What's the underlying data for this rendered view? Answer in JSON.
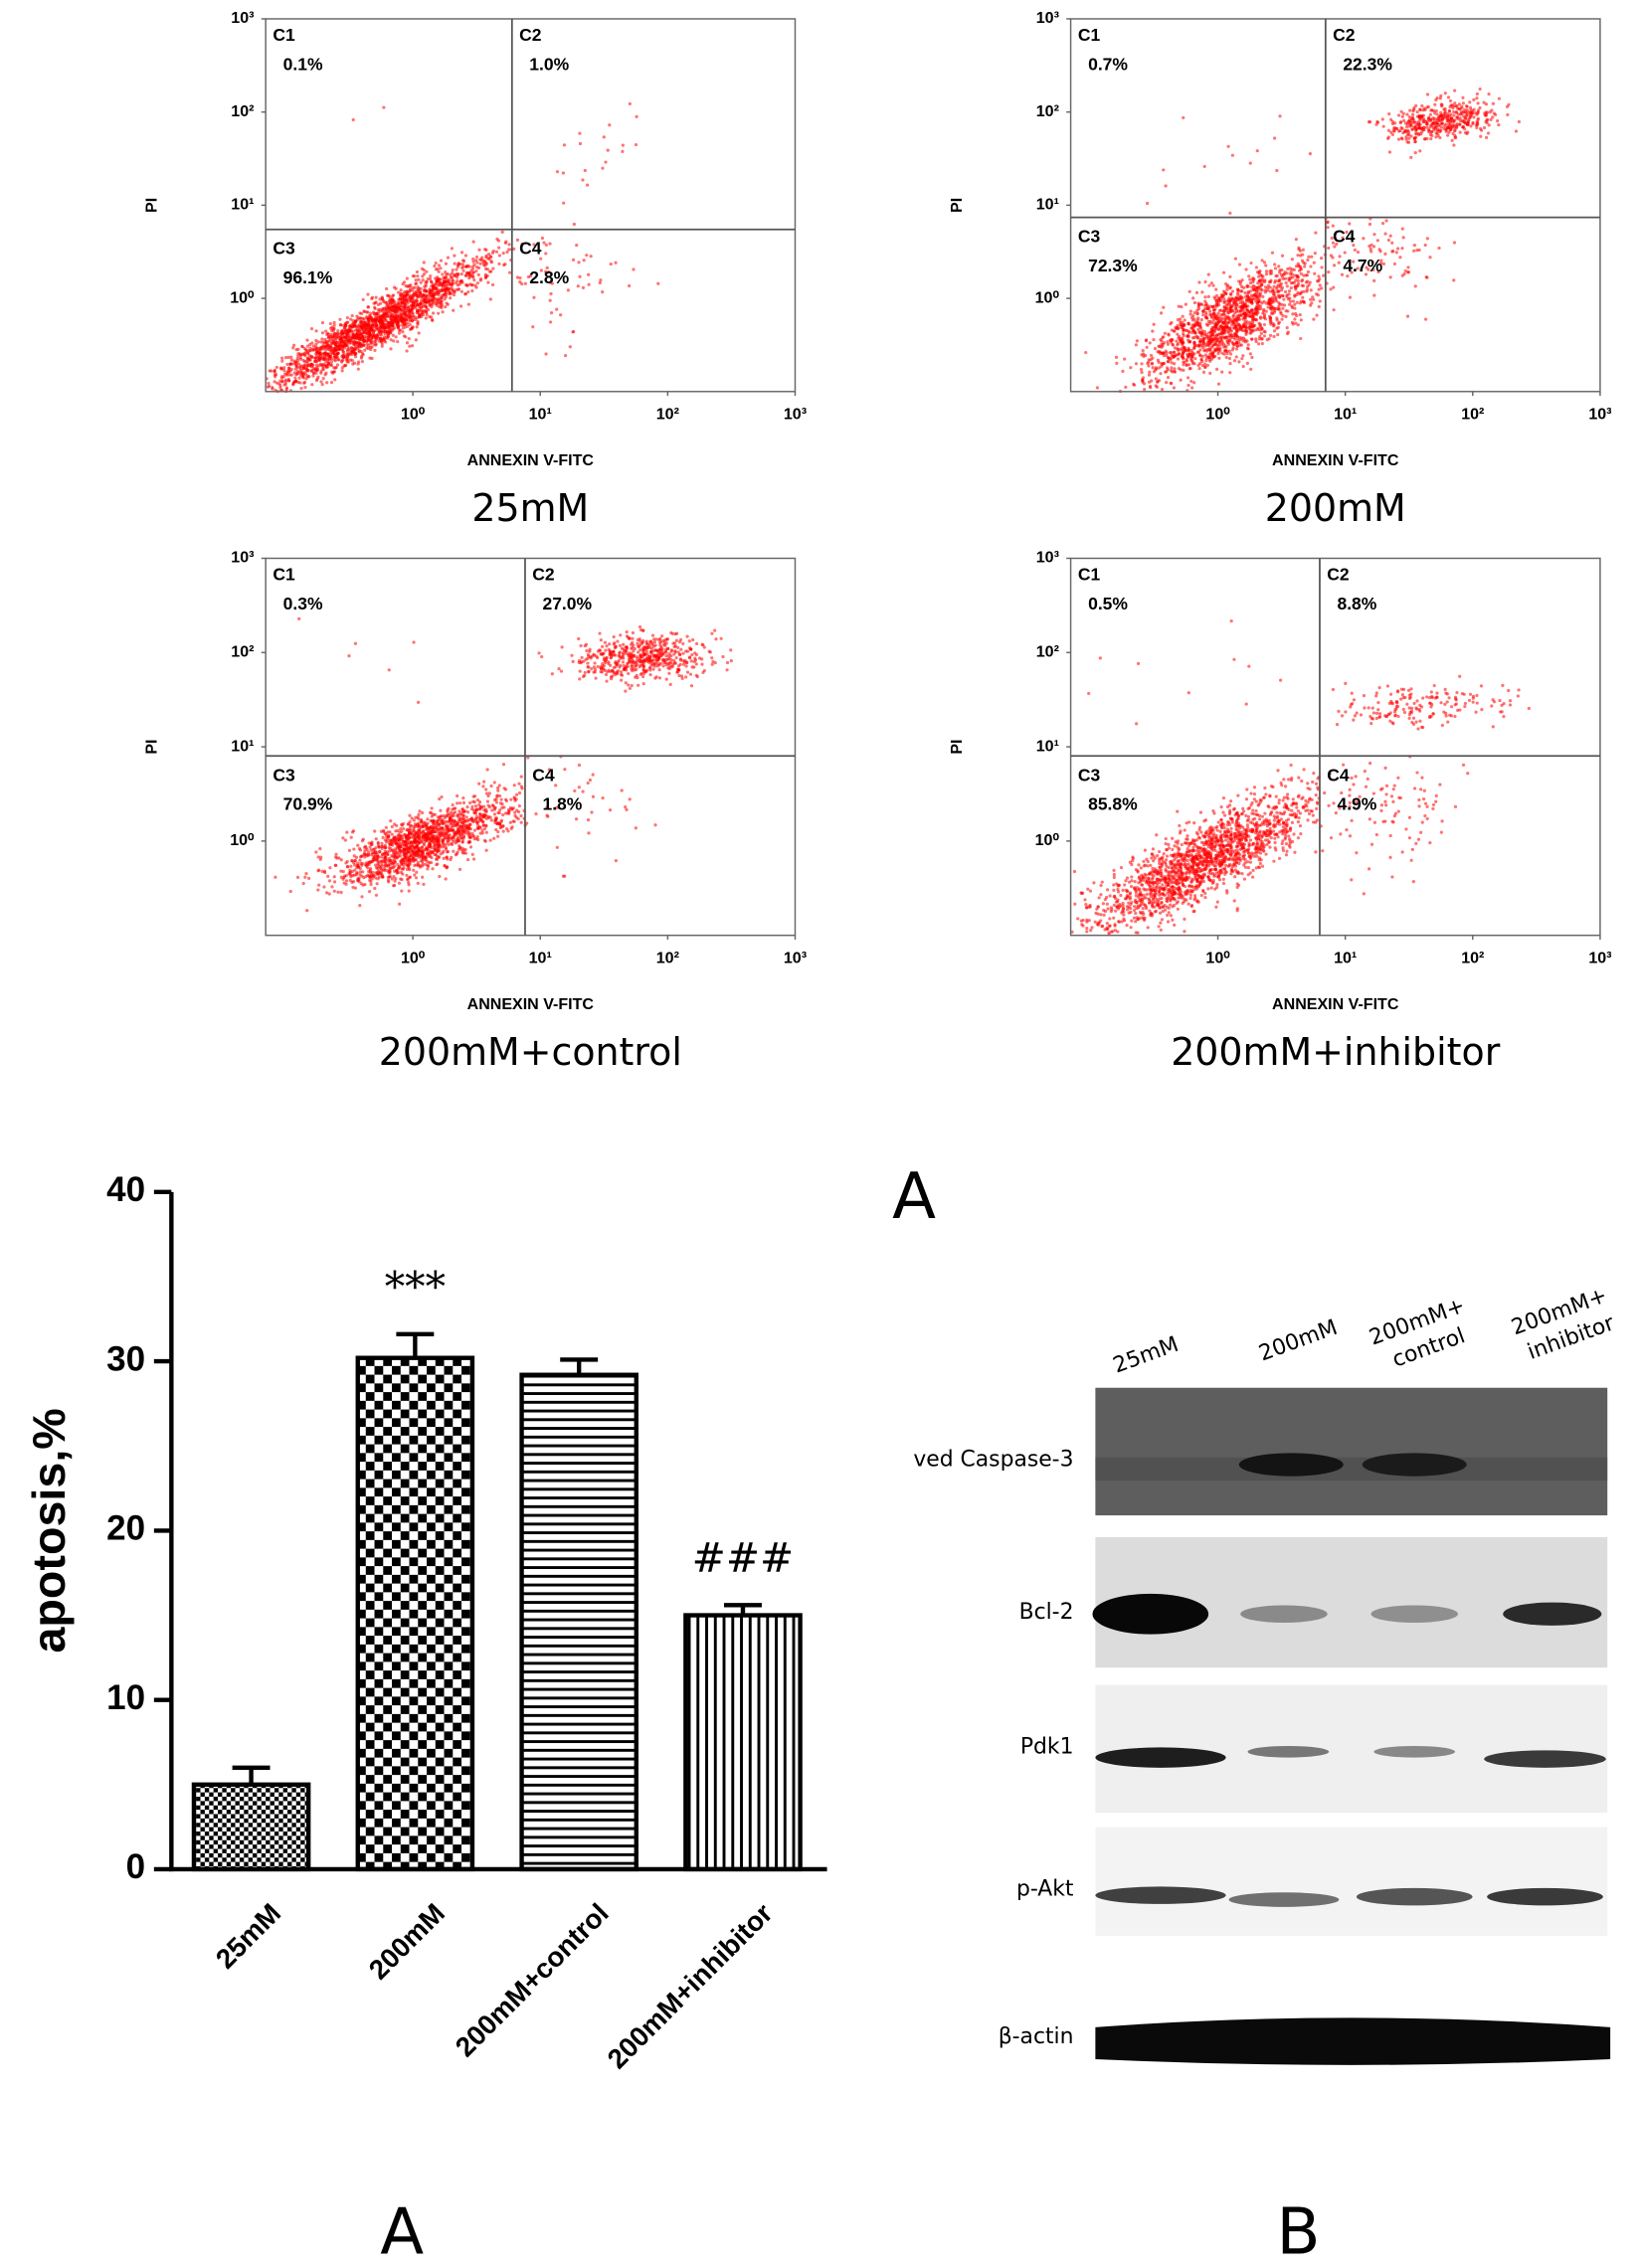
{
  "chart_data": [
    {
      "type": "flow",
      "title": "25mM",
      "xlabel": "ANNEXIN V-FITC",
      "ylabel": "PI",
      "categories": [
        "C1",
        "C2",
        "C3",
        "C4"
      ],
      "values": [
        0.1,
        1.0,
        96.1,
        2.8
      ],
      "value_labels": [
        "0.1%",
        "1.0%",
        "96.1%",
        "2.8%"
      ],
      "color": "#ff0000",
      "xscale": "log",
      "yscale": "log",
      "xlim": [
        0.07,
        1000
      ],
      "ylim": [
        0.1,
        1000
      ],
      "xticks": [
        {
          "value": 1,
          "label": "10⁰"
        },
        {
          "value": 10,
          "label": "10¹"
        },
        {
          "value": 100,
          "label": "10²"
        },
        {
          "value": 1000,
          "label": "10³"
        }
      ],
      "yticks": [
        {
          "value": 1,
          "label": "10⁰"
        },
        {
          "value": 10,
          "label": "10¹"
        },
        {
          "value": 100,
          "label": "10²"
        },
        {
          "value": 1000,
          "label": "10³"
        }
      ],
      "xgate": 6,
      "ygate": 5.5
    },
    {
      "type": "flow",
      "title": "200mM",
      "xlabel": "ANNEXIN V-FITC",
      "ylabel": "PI",
      "categories": [
        "C1",
        "C2",
        "C3",
        "C4"
      ],
      "values": [
        0.7,
        22.3,
        72.3,
        4.7
      ],
      "value_labels": [
        "0.7%",
        "22.3%",
        "72.3%",
        "4.7%"
      ],
      "color": "#ff0000",
      "xscale": "log",
      "yscale": "log",
      "xlim": [
        0.07,
        1000
      ],
      "ylim": [
        0.1,
        1000
      ],
      "xticks": [
        {
          "value": 1,
          "label": "10⁰"
        },
        {
          "value": 10,
          "label": "10¹"
        },
        {
          "value": 100,
          "label": "10²"
        },
        {
          "value": 1000,
          "label": "10³"
        }
      ],
      "yticks": [
        {
          "value": 1,
          "label": "10⁰"
        },
        {
          "value": 10,
          "label": "10¹"
        },
        {
          "value": 100,
          "label": "10²"
        },
        {
          "value": 1000,
          "label": "10³"
        }
      ],
      "xgate": 7,
      "ygate": 7.4
    },
    {
      "type": "flow",
      "title": "200mM+control",
      "xlabel": "ANNEXIN V-FITC",
      "ylabel": "PI",
      "categories": [
        "C1",
        "C2",
        "C3",
        "C4"
      ],
      "values": [
        0.3,
        27.0,
        70.9,
        1.8
      ],
      "value_labels": [
        "0.3%",
        "27.0%",
        "70.9%",
        "1.8%"
      ],
      "color": "#ff0000",
      "xscale": "log",
      "yscale": "log",
      "xlim": [
        0.07,
        1000
      ],
      "ylim": [
        0.1,
        1000
      ],
      "xticks": [
        {
          "value": 1,
          "label": "10⁰"
        },
        {
          "value": 10,
          "label": "10¹"
        },
        {
          "value": 100,
          "label": "10²"
        },
        {
          "value": 1000,
          "label": "10³"
        }
      ],
      "yticks": [
        {
          "value": 1,
          "label": "10⁰"
        },
        {
          "value": 10,
          "label": "10¹"
        },
        {
          "value": 100,
          "label": "10²"
        },
        {
          "value": 1000,
          "label": "10³"
        }
      ],
      "xgate": 7.6,
      "ygate": 8
    },
    {
      "type": "flow",
      "title": "200mM+inhibitor",
      "xlabel": "ANNEXIN V-FITC",
      "ylabel": "PI",
      "categories": [
        "C1",
        "C2",
        "C3",
        "C4"
      ],
      "values": [
        0.5,
        8.8,
        85.8,
        4.9
      ],
      "value_labels": [
        "0.5%",
        "8.8%",
        "85.8%",
        "4.9%"
      ],
      "color": "#ff0000",
      "xscale": "log",
      "yscale": "log",
      "xlim": [
        0.07,
        1000
      ],
      "ylim": [
        0.1,
        1000
      ],
      "xticks": [
        {
          "value": 1,
          "label": "10⁰"
        },
        {
          "value": 10,
          "label": "10¹"
        },
        {
          "value": 100,
          "label": "10²"
        },
        {
          "value": 1000,
          "label": "10³"
        }
      ],
      "yticks": [
        {
          "value": 1,
          "label": "10⁰"
        },
        {
          "value": 10,
          "label": "10¹"
        },
        {
          "value": 100,
          "label": "10²"
        },
        {
          "value": 1000,
          "label": "10³"
        }
      ],
      "xgate": 6.3,
      "ygate": 8
    },
    {
      "type": "bar",
      "ylabel": "apotosis,%",
      "categories": [
        "25mM",
        "200mM",
        "200mM+control",
        "200mM+inhibitor"
      ],
      "values": [
        5,
        30.2,
        29.2,
        15
      ],
      "errors": [
        1,
        1.4,
        0.9,
        0.6
      ],
      "annotations": [
        null,
        "***",
        null,
        "###"
      ],
      "patterns": [
        "small-check",
        "check",
        "hlines",
        "vlines"
      ],
      "color": "#000000",
      "ylim": [
        0,
        40
      ],
      "yticks": [
        0,
        10,
        20,
        30,
        40
      ]
    }
  ],
  "panel_labels": [
    "A",
    "A",
    "B"
  ],
  "western_blot": {
    "lanes": [
      [
        "25mM"
      ],
      [
        "200mM"
      ],
      [
        "200mM+",
        "control"
      ],
      [
        "200mM+",
        "inhibitor"
      ]
    ],
    "rows": [
      "ved Caspase-3",
      "Bcl-2",
      "Pdk1",
      "p-Akt",
      "β-actin"
    ]
  }
}
